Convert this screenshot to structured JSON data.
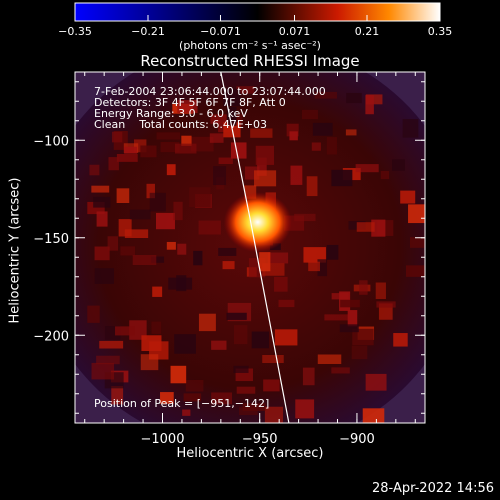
{
  "chart_data": {
    "type": "heatmap",
    "title": "Reconstructed RHESSI Image",
    "xlabel": "Heliocentric X (arcsec)",
    "ylabel": "Heliocentric Y (arcsec)",
    "xlim": [
      -1045,
      -865
    ],
    "ylim": [
      -245,
      -65
    ],
    "xticks": [
      -1000,
      -950,
      -900
    ],
    "xtick_labels": [
      "−1000",
      "−950",
      "−900"
    ],
    "yticks": [
      -100,
      -150,
      -200
    ],
    "ytick_labels": [
      "−100",
      "−150",
      "−200"
    ],
    "peak": {
      "x": -951,
      "y": -142
    },
    "colorbar": {
      "min": -0.35,
      "max": 0.35,
      "ticks": [
        -0.35,
        -0.21,
        -0.071,
        0.071,
        0.21,
        0.35
      ],
      "tick_labels": [
        "−0.35",
        "−0.21",
        "−0.071",
        "0.071",
        "0.21",
        "0.35"
      ],
      "units_label": "(photons cm⁻² s⁻¹ asec⁻²)"
    },
    "limb_line": [
      [
        -970,
        -65
      ],
      [
        -955,
        -140
      ],
      [
        -935,
        -245
      ]
    ],
    "grid": false
  },
  "annotations": {
    "time_range": "7-Feb-2004 23:06:44.000 to 23:07:44.000",
    "detectors": "Detectors: 3F 4F 5F 6F 7F 8F, Att 0",
    "energy_range": "Energy Range: 3.0 - 6.0 keV",
    "algorithm": "Clean",
    "total_counts": "Total counts: 6.47E+03",
    "peak_position": "Position of Peak = [−951,−142]"
  },
  "footer": {
    "timestamp": "28-Apr-2022 14:56"
  },
  "colors": {
    "background": "#000000",
    "axes": "#ffffff",
    "limb": "#ffffff"
  }
}
